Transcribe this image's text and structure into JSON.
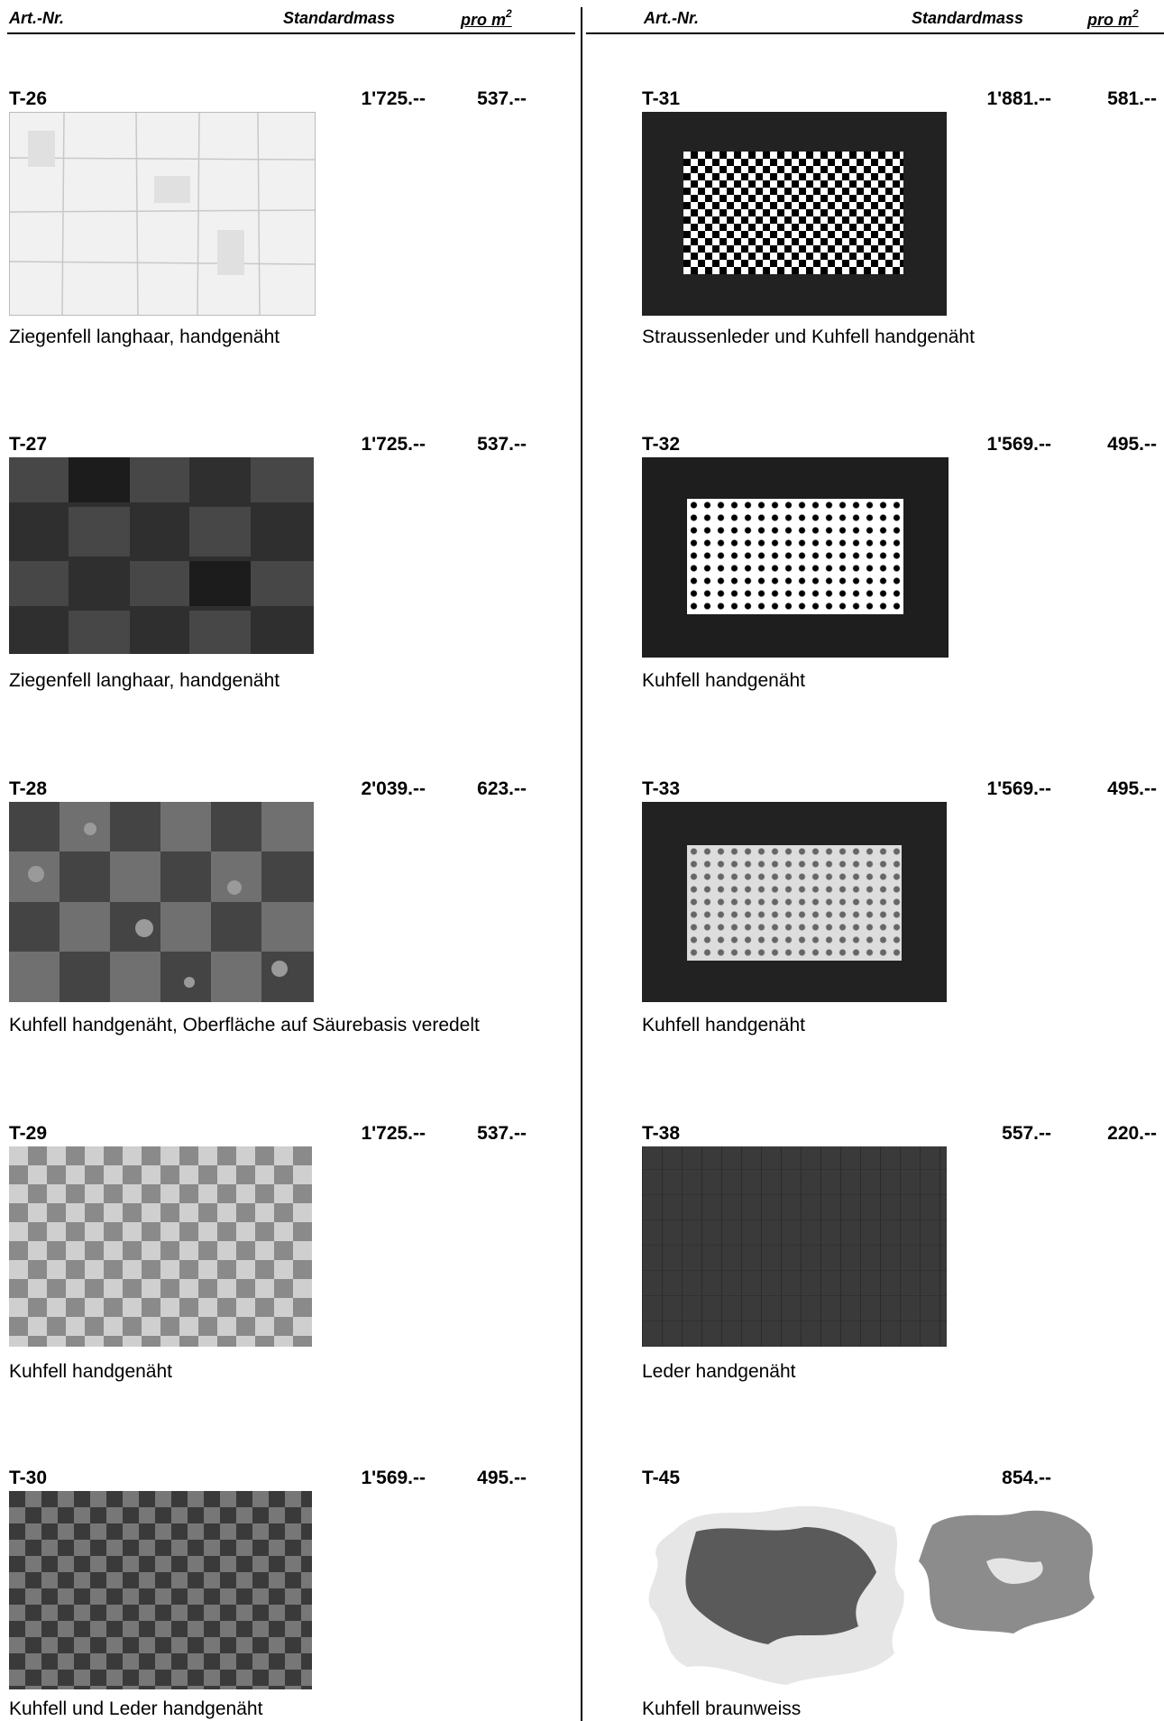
{
  "header": {
    "col_art": "Art.-Nr.",
    "col_std": "Standardmass",
    "col_pro": "pro m",
    "col_pro_sup": "2"
  },
  "items": [
    {
      "art": "T-26",
      "std": "1'725.--",
      "m2": "537.--",
      "desc": "Ziegenfell langhaar, handgenäht"
    },
    {
      "art": "T-27",
      "std": "1'725.--",
      "m2": "537.--",
      "desc": "Ziegenfell langhaar, handgenäht"
    },
    {
      "art": "T-28",
      "std": "2'039.--",
      "m2": "623.--",
      "desc": "Kuhfell handgenäht, Oberfläche auf Säurebasis veredelt"
    },
    {
      "art": "T-29",
      "std": "1'725.--",
      "m2": "537.--",
      "desc": "Kuhfell handgenäht"
    },
    {
      "art": "T-30",
      "std": "1'569.--",
      "m2": "495.--",
      "desc": "Kuhfell und Leder handgenäht"
    },
    {
      "art": "T-31",
      "std": "1'881.--",
      "m2": "581.--",
      "desc": "Straussenleder und Kuhfell handgenäht"
    },
    {
      "art": "T-32",
      "std": "1'569.--",
      "m2": "495.--",
      "desc": "Kuhfell handgenäht"
    },
    {
      "art": "T-33",
      "std": "1'569.--",
      "m2": "495.--",
      "desc": "Kuhfell handgenäht"
    },
    {
      "art": "T-38",
      "std": "557.--",
      "m2": "220.--",
      "desc": "Leder handgenäht"
    },
    {
      "art": "T-45",
      "std": "854.--",
      "m2": "",
      "desc": "Kuhfell braunweiss"
    }
  ]
}
